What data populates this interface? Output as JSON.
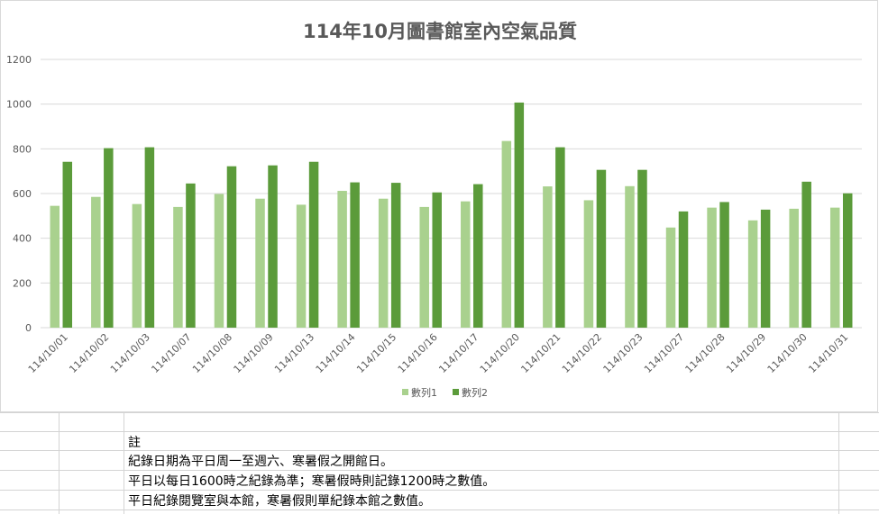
{
  "chart_data": {
    "type": "bar",
    "title": "114年10月圖書館室內空氣品質",
    "xlabel": "",
    "ylabel": "",
    "categories": [
      "114/10/01",
      "114/10/02",
      "114/10/03",
      "114/10/07",
      "114/10/08",
      "114/10/09",
      "114/10/13",
      "114/10/14",
      "114/10/15",
      "114/10/16",
      "114/10/17",
      "114/10/20",
      "114/10/21",
      "114/10/22",
      "114/10/23",
      "114/10/27",
      "114/10/28",
      "114/10/29",
      "114/10/30",
      "114/10/31"
    ],
    "series": [
      {
        "name": "數列1",
        "color": "#a9d18e",
        "values": [
          545,
          585,
          553,
          540,
          598,
          577,
          550,
          612,
          577,
          540,
          565,
          835,
          632,
          570,
          633,
          448,
          537,
          480,
          532,
          537
        ]
      },
      {
        "name": "數列2",
        "color": "#5b9b3a",
        "values": [
          742,
          803,
          807,
          645,
          722,
          726,
          742,
          650,
          648,
          605,
          642,
          1007,
          807,
          706,
          706,
          520,
          562,
          528,
          653,
          601
        ]
      }
    ],
    "ylim": [
      0,
      1200
    ],
    "yticks": [
      0,
      200,
      400,
      600,
      800,
      1000,
      1200
    ],
    "grid": true,
    "legend_position": "bottom"
  },
  "notes": {
    "header": "註",
    "lines": [
      "紀錄日期為平日周一至週六、寒暑假之開館日。",
      "平日以每日1600時之紀錄為準；寒暑假時則記錄1200時之數值。",
      "平日紀錄閱覽室與本館，寒暑假則單紀錄本館之數值。"
    ]
  }
}
